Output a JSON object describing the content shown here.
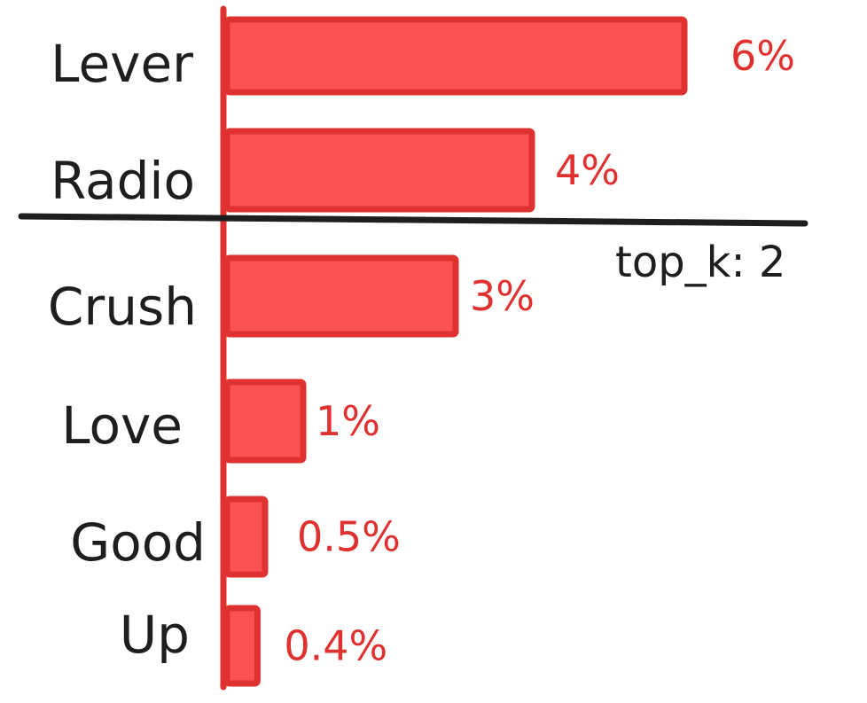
{
  "chart_data": {
    "type": "bar",
    "orientation": "horizontal",
    "categories": [
      "Lever",
      "Radio",
      "Crush",
      "Love",
      "Good",
      "Up"
    ],
    "values": [
      6,
      4,
      3,
      1,
      0.5,
      0.4
    ],
    "value_labels": [
      "6%",
      "4%",
      "3%",
      "1%",
      "0.5%",
      "0.4%"
    ],
    "unit": "%",
    "xlim": [
      0,
      6
    ],
    "grid": false,
    "legend": "none",
    "annotation": {
      "text": "top_k: 2",
      "after_rank": 2
    },
    "colors": {
      "bar_fill": "#fa5252",
      "bar_stroke": "#e03131",
      "value_text": "#e03131",
      "axis": "#e03131",
      "cutoff_line": "#1e1e1e",
      "label_text": "#1e1e1e"
    }
  }
}
